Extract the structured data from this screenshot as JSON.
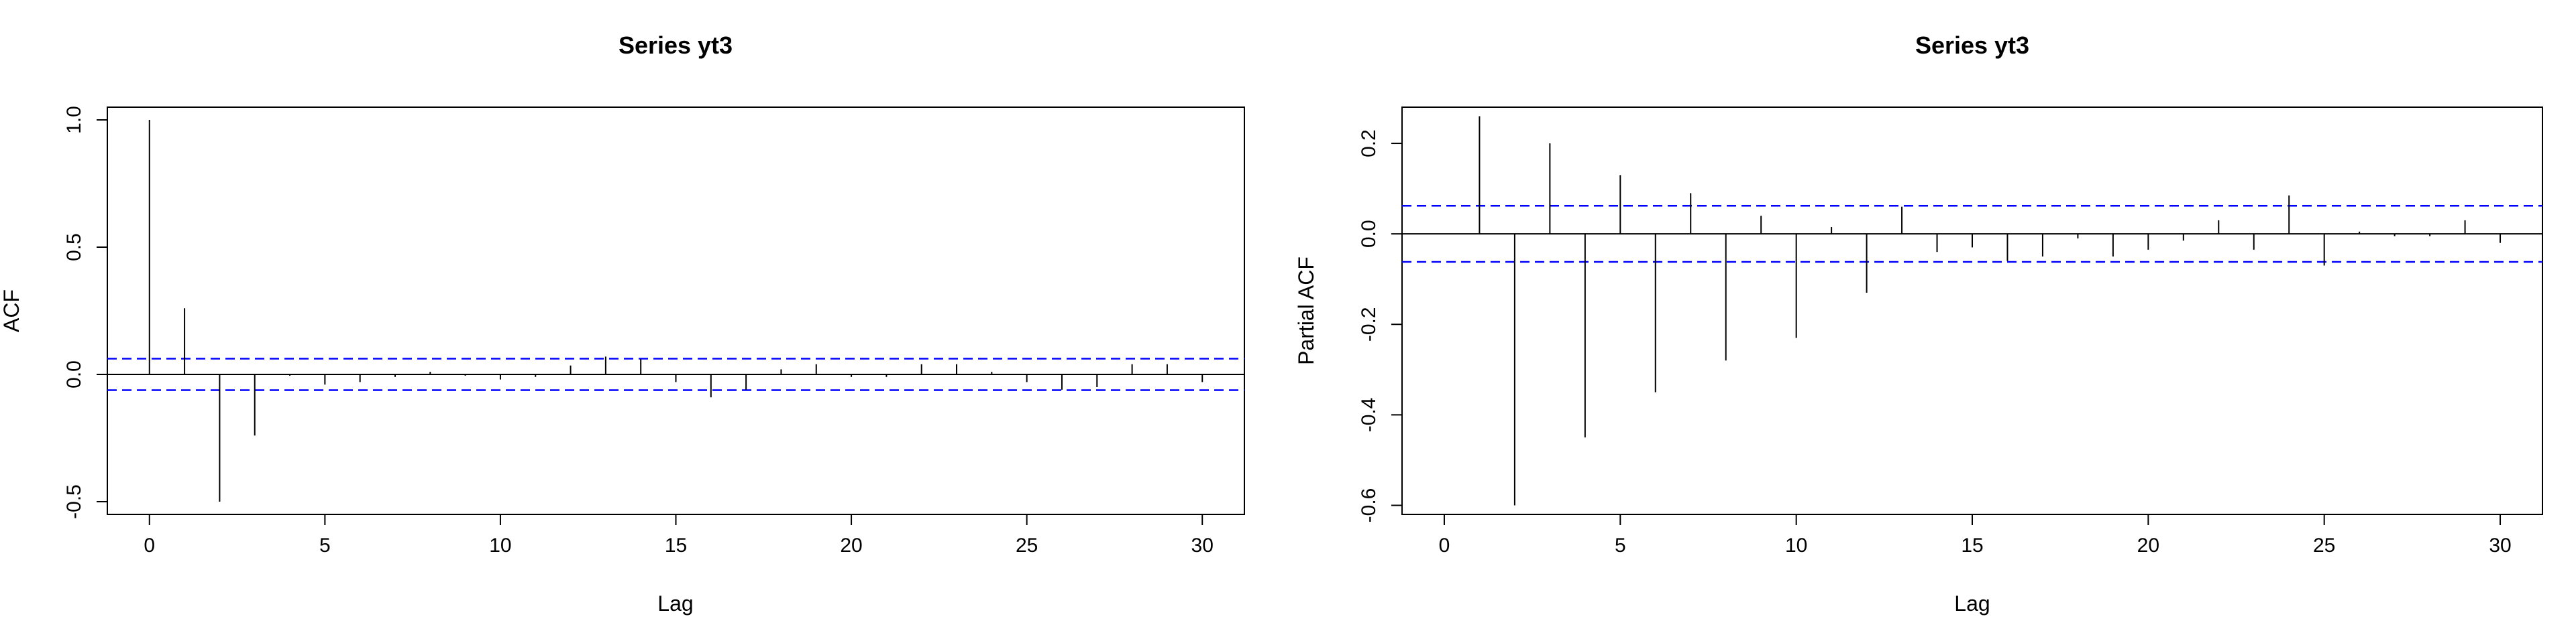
{
  "chart_data": [
    {
      "type": "bar",
      "title": "Series  yt3",
      "xlabel": "Lag",
      "ylabel": "ACF",
      "xlim": [
        0,
        30
      ],
      "ylim": [
        -0.55,
        1.05
      ],
      "xticks": [
        "0",
        "5",
        "10",
        "15",
        "20",
        "25",
        "30"
      ],
      "yticks": [
        "-0.5",
        "0.0",
        "0.5",
        "1.0"
      ],
      "conf_limit": 0.062,
      "conf_color": "#0000ff",
      "lags": [
        0,
        1,
        2,
        3,
        4,
        5,
        6,
        7,
        8,
        9,
        10,
        11,
        12,
        13,
        14,
        15,
        16,
        17,
        18,
        19,
        20,
        21,
        22,
        23,
        24,
        25,
        26,
        27,
        28,
        29,
        30
      ],
      "values": [
        1.0,
        0.26,
        -0.5,
        -0.24,
        -0.005,
        -0.04,
        -0.03,
        -0.01,
        0.01,
        -0.005,
        -0.02,
        -0.01,
        0.035,
        0.07,
        0.06,
        -0.03,
        -0.09,
        -0.06,
        0.02,
        0.04,
        -0.01,
        -0.01,
        0.04,
        0.04,
        0.01,
        -0.03,
        -0.06,
        -0.05,
        0.04,
        0.04,
        -0.03
      ]
    },
    {
      "type": "bar",
      "title": "Series  yt3",
      "xlabel": "Lag",
      "ylabel": "Partial ACF",
      "xlim": [
        0,
        30
      ],
      "ylim": [
        -0.62,
        0.28
      ],
      "xticks": [
        "0",
        "5",
        "10",
        "15",
        "20",
        "25",
        "30"
      ],
      "yticks": [
        "-0.6",
        "-0.4",
        "-0.2",
        "0.0",
        "0.2"
      ],
      "conf_limit": 0.062,
      "conf_color": "#0000ff",
      "lags": [
        1,
        2,
        3,
        4,
        5,
        6,
        7,
        8,
        9,
        10,
        11,
        12,
        13,
        14,
        15,
        16,
        17,
        18,
        19,
        20,
        21,
        22,
        23,
        24,
        25,
        26,
        27,
        28,
        29,
        30
      ],
      "values": [
        0.26,
        -0.6,
        0.2,
        -0.45,
        0.13,
        -0.35,
        0.09,
        -0.28,
        0.04,
        -0.23,
        0.015,
        -0.13,
        0.06,
        -0.04,
        -0.03,
        -0.06,
        -0.05,
        -0.01,
        -0.05,
        -0.035,
        -0.015,
        0.03,
        -0.035,
        0.085,
        -0.07,
        0.005,
        -0.005,
        -0.005,
        0.03,
        -0.02
      ]
    }
  ]
}
